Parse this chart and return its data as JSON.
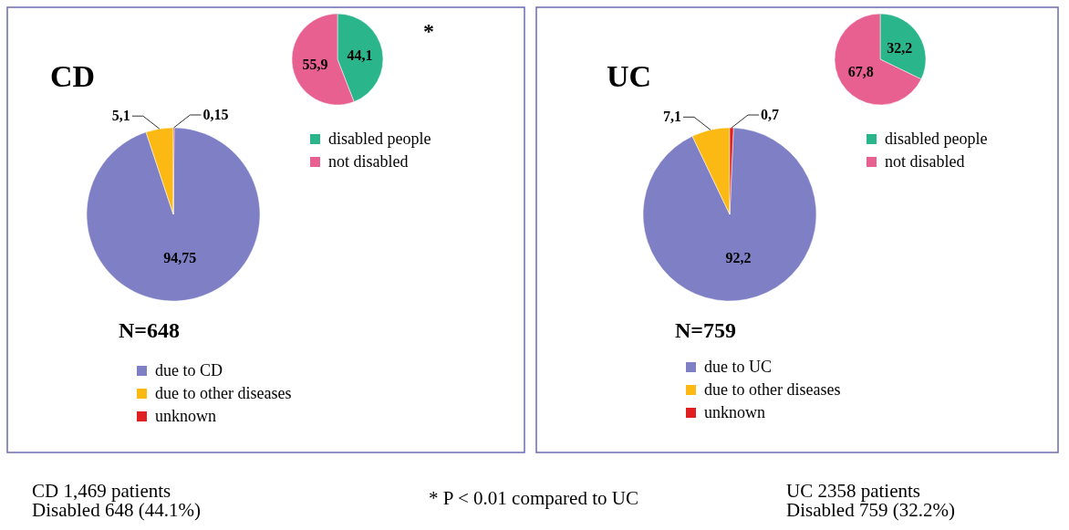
{
  "chart_data": [
    {
      "type": "pie",
      "categories": [
        "disabled people",
        "not disabled"
      ],
      "values": [
        44.1,
        55.9
      ],
      "colors": [
        "#2bb58a",
        "#e8608f"
      ],
      "value_labels": [
        "44,1",
        "55,9"
      ],
      "legend": "bottom right",
      "annotations": [
        "*",
        "* P < 0.01 compared to UC"
      ]
    },
    {
      "type": "pie",
      "title": "CD",
      "subtitle": "N=648",
      "categories": [
        "due to CD",
        "due to other diseases",
        "unknown"
      ],
      "values": [
        94.75,
        5.1,
        0.15
      ],
      "colors": [
        "#7f7fc5",
        "#fdb913",
        "#e02020"
      ],
      "value_labels": [
        "94,75",
        "5,1",
        "0,15"
      ],
      "legend": "bottom",
      "annotations": [
        "CD 1,469 patients",
        "Disabled 648 (44.1%)"
      ]
    },
    {
      "type": "pie",
      "categories": [
        "disabled people",
        "not disabled"
      ],
      "values": [
        32.2,
        67.8
      ],
      "colors": [
        "#2bb58a",
        "#e8608f"
      ],
      "value_labels": [
        "32,2",
        "67,8"
      ],
      "legend": "bottom right"
    },
    {
      "type": "pie",
      "title": "UC",
      "subtitle": "N=759",
      "categories": [
        "due to UC",
        "due to other diseases",
        "unknown"
      ],
      "values": [
        92.2,
        7.1,
        0.7
      ],
      "colors": [
        "#7f7fc5",
        "#fdb913",
        "#e02020"
      ],
      "value_labels": [
        "92,2",
        "7,1",
        "0,7"
      ],
      "legend": "bottom",
      "annotations": [
        "UC 2358 patients",
        "Disabled 759 (32.2%)"
      ]
    }
  ]
}
